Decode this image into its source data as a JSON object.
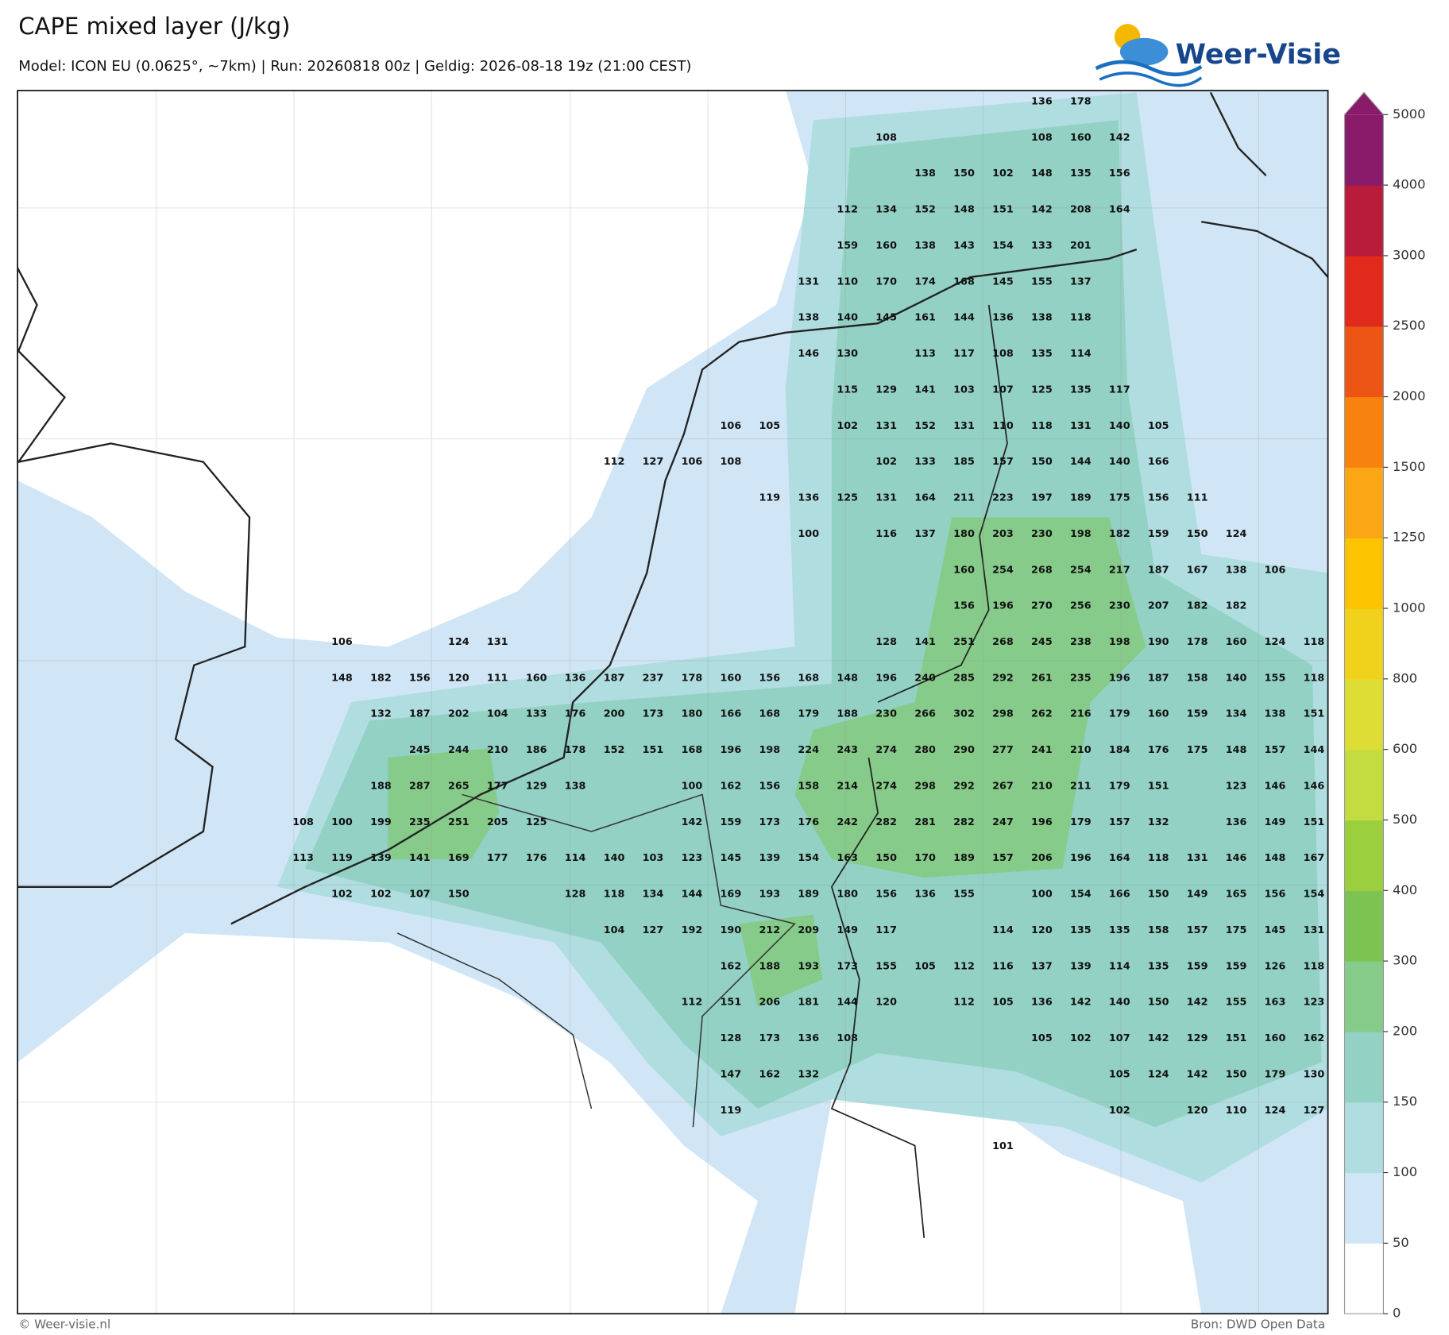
{
  "header": {
    "title": "CAPE mixed layer (J/kg)",
    "subtitle": "Model: ICON EU (0.0625°, ~7km)  |  Run: 20260818 00z  |  Geldig: 2026-08-18 19z (21:00 CEST)",
    "logo": "Weer-Visie"
  },
  "footer": {
    "left": "© Weer-visie.nl",
    "right": "Bron: DWD Open Data"
  },
  "colorbar": {
    "ticks": [
      0,
      50,
      100,
      150,
      200,
      300,
      400,
      500,
      600,
      800,
      1000,
      1250,
      1500,
      2000,
      2500,
      3000,
      4000,
      5000
    ],
    "colors": [
      "#ffffff",
      "#d0e6f6",
      "#b0dde0",
      "#93d1c4",
      "#86cb8a",
      "#7dc352",
      "#9ccf3e",
      "#c4dc40",
      "#dedd35",
      "#f0d21c",
      "#fbc300",
      "#fba614",
      "#f7830e",
      "#ec5514",
      "#e02a1c",
      "#b81c3a",
      "#8a1a6a"
    ]
  },
  "value_grid": {
    "rows": [
      [
        null,
        null,
        null,
        null,
        null,
        null,
        null,
        null,
        null,
        null,
        null,
        null,
        null,
        null,
        null,
        null,
        null,
        null,
        null,
        136,
        178
      ],
      [
        null,
        null,
        null,
        null,
        null,
        null,
        null,
        null,
        null,
        null,
        null,
        null,
        null,
        null,
        null,
        108,
        null,
        null,
        null,
        108,
        160,
        142
      ],
      [
        null,
        null,
        null,
        null,
        null,
        null,
        null,
        null,
        null,
        null,
        null,
        null,
        null,
        null,
        null,
        null,
        138,
        150,
        102,
        148,
        135,
        156
      ],
      [
        null,
        null,
        null,
        null,
        null,
        null,
        null,
        null,
        null,
        null,
        null,
        null,
        null,
        null,
        112,
        134,
        152,
        148,
        151,
        142,
        208,
        164
      ],
      [
        null,
        null,
        null,
        null,
        null,
        null,
        null,
        null,
        null,
        null,
        null,
        null,
        null,
        null,
        159,
        160,
        138,
        143,
        154,
        133,
        201
      ],
      [
        null,
        null,
        null,
        null,
        null,
        null,
        null,
        null,
        null,
        null,
        null,
        null,
        null,
        131,
        110,
        170,
        174,
        168,
        145,
        155,
        137
      ],
      [
        null,
        null,
        null,
        null,
        null,
        null,
        null,
        null,
        null,
        null,
        null,
        null,
        null,
        138,
        140,
        145,
        161,
        144,
        136,
        138,
        118
      ],
      [
        null,
        null,
        null,
        null,
        null,
        null,
        null,
        null,
        null,
        null,
        null,
        null,
        null,
        146,
        130,
        null,
        113,
        117,
        108,
        135,
        114
      ],
      [
        null,
        null,
        null,
        null,
        null,
        null,
        null,
        null,
        null,
        null,
        null,
        null,
        null,
        null,
        115,
        129,
        141,
        103,
        107,
        125,
        135,
        117
      ],
      [
        null,
        null,
        null,
        null,
        null,
        null,
        null,
        null,
        null,
        null,
        null,
        106,
        105,
        null,
        102,
        131,
        152,
        131,
        110,
        118,
        131,
        140,
        105
      ],
      [
        null,
        null,
        null,
        null,
        null,
        null,
        null,
        null,
        112,
        127,
        106,
        108,
        null,
        null,
        null,
        102,
        133,
        185,
        157,
        150,
        144,
        140,
        166
      ],
      [
        null,
        null,
        null,
        null,
        null,
        null,
        null,
        null,
        null,
        null,
        null,
        null,
        119,
        136,
        125,
        131,
        164,
        211,
        223,
        197,
        189,
        175,
        156,
        111
      ],
      [
        null,
        null,
        null,
        null,
        null,
        null,
        null,
        null,
        null,
        null,
        null,
        null,
        null,
        100,
        null,
        116,
        137,
        180,
        203,
        230,
        198,
        182,
        159,
        150,
        124
      ],
      [
        null,
        null,
        null,
        null,
        null,
        null,
        null,
        null,
        null,
        null,
        null,
        null,
        null,
        null,
        null,
        null,
        null,
        160,
        254,
        268,
        254,
        217,
        187,
        167,
        138,
        106
      ],
      [
        null,
        null,
        null,
        null,
        null,
        null,
        null,
        null,
        null,
        null,
        null,
        null,
        null,
        null,
        null,
        null,
        null,
        156,
        196,
        270,
        256,
        230,
        207,
        182,
        182
      ],
      [
        null,
        106,
        null,
        null,
        124,
        131,
        null,
        null,
        null,
        null,
        null,
        null,
        null,
        null,
        null,
        128,
        141,
        251,
        268,
        245,
        238,
        198,
        190,
        178,
        160,
        124,
        118
      ],
      [
        null,
        148,
        182,
        156,
        120,
        111,
        160,
        136,
        187,
        237,
        178,
        160,
        156,
        168,
        148,
        196,
        240,
        285,
        292,
        261,
        235,
        196,
        187,
        158,
        140,
        155,
        118
      ],
      [
        null,
        null,
        132,
        187,
        202,
        104,
        133,
        176,
        200,
        173,
        180,
        166,
        168,
        179,
        188,
        230,
        266,
        302,
        298,
        262,
        216,
        179,
        160,
        159,
        134,
        138,
        151
      ],
      [
        null,
        null,
        null,
        245,
        244,
        210,
        186,
        178,
        152,
        151,
        168,
        196,
        198,
        224,
        243,
        274,
        280,
        290,
        277,
        241,
        210,
        184,
        176,
        175,
        148,
        157,
        144
      ],
      [
        null,
        null,
        188,
        287,
        265,
        177,
        129,
        138,
        null,
        null,
        100,
        162,
        156,
        158,
        214,
        274,
        298,
        292,
        267,
        210,
        211,
        179,
        151,
        null,
        123,
        146,
        146
      ],
      [
        108,
        100,
        199,
        235,
        251,
        205,
        125,
        null,
        null,
        null,
        142,
        159,
        173,
        176,
        242,
        282,
        281,
        282,
        247,
        196,
        179,
        157,
        132,
        null,
        136,
        149,
        151
      ],
      [
        113,
        119,
        139,
        141,
        169,
        177,
        176,
        114,
        140,
        103,
        123,
        145,
        139,
        154,
        163,
        150,
        170,
        189,
        157,
        206,
        196,
        164,
        118,
        131,
        146,
        148,
        167
      ],
      [
        null,
        102,
        102,
        107,
        150,
        null,
        null,
        128,
        118,
        134,
        144,
        169,
        193,
        189,
        180,
        156,
        136,
        155,
        null,
        100,
        154,
        166,
        150,
        149,
        165,
        156,
        154
      ],
      [
        null,
        null,
        null,
        null,
        null,
        null,
        null,
        null,
        104,
        127,
        192,
        190,
        212,
        209,
        149,
        117,
        null,
        null,
        114,
        120,
        135,
        135,
        158,
        157,
        175,
        145,
        131
      ],
      [
        null,
        null,
        null,
        null,
        null,
        null,
        null,
        null,
        null,
        null,
        null,
        162,
        188,
        193,
        173,
        155,
        105,
        112,
        116,
        137,
        139,
        114,
        135,
        159,
        159,
        126,
        118
      ],
      [
        null,
        null,
        null,
        null,
        null,
        null,
        null,
        null,
        null,
        null,
        112,
        151,
        206,
        181,
        144,
        120,
        null,
        112,
        105,
        136,
        142,
        140,
        150,
        142,
        155,
        163,
        123
      ],
      [
        null,
        null,
        null,
        null,
        null,
        null,
        null,
        null,
        null,
        null,
        null,
        128,
        173,
        136,
        108,
        null,
        null,
        null,
        null,
        105,
        102,
        107,
        142,
        129,
        151,
        160,
        162
      ],
      [
        null,
        null,
        null,
        null,
        null,
        null,
        null,
        null,
        null,
        null,
        null,
        147,
        162,
        132,
        null,
        null,
        null,
        null,
        null,
        null,
        null,
        105,
        124,
        142,
        150,
        179,
        130
      ],
      [
        null,
        null,
        null,
        null,
        null,
        null,
        null,
        null,
        null,
        null,
        null,
        119,
        null,
        null,
        null,
        null,
        null,
        null,
        null,
        null,
        null,
        102,
        null,
        120,
        110,
        124,
        127
      ],
      [
        null,
        null,
        null,
        null,
        null,
        null,
        null,
        null,
        null,
        null,
        null,
        null,
        null,
        null,
        null,
        null,
        null,
        null,
        101
      ]
    ]
  }
}
